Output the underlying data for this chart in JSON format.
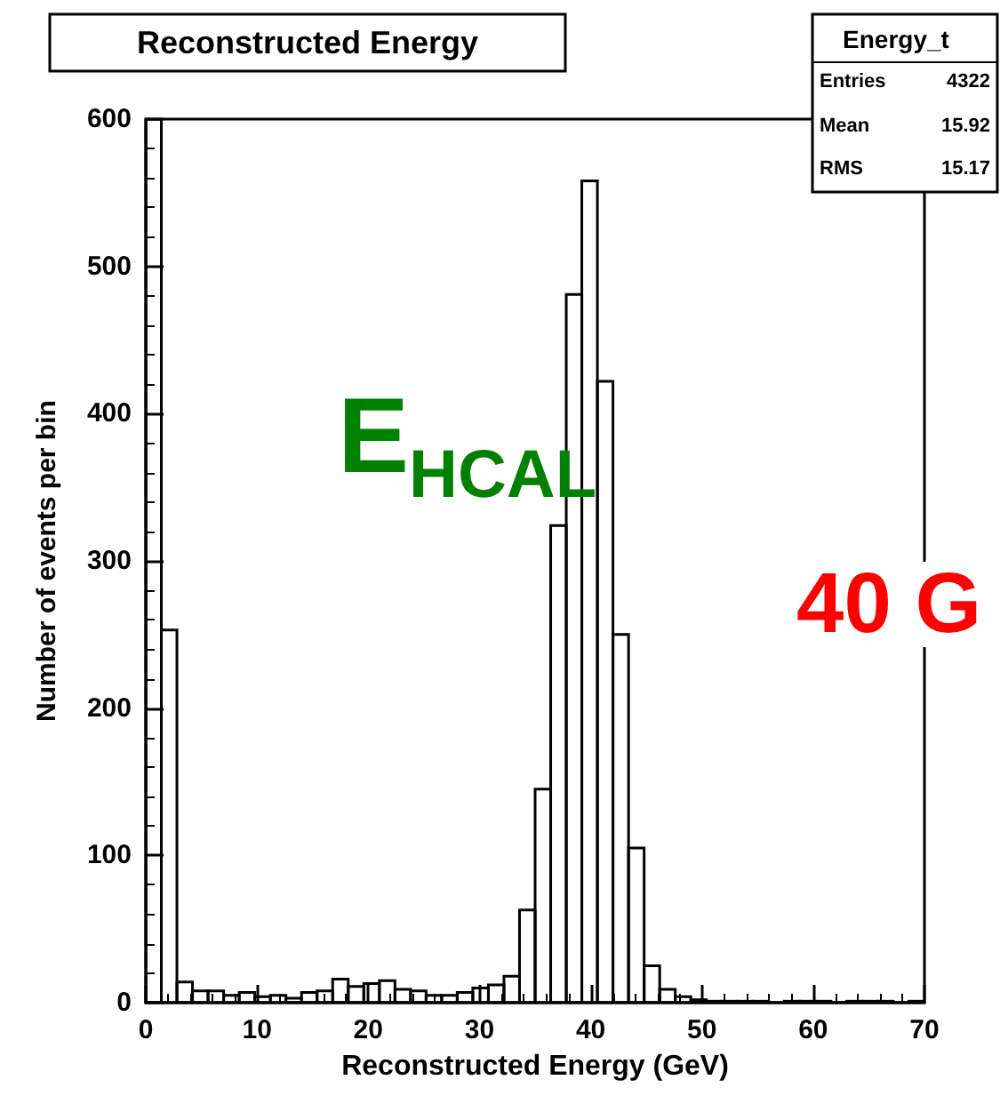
{
  "chart_data": {
    "type": "histogram",
    "title": "Reconstructed Energy",
    "xlabel": "Reconstructed Energy (GeV)",
    "ylabel": "Number of events per bin",
    "bins": [
      0,
      1.4,
      2.8,
      4.2,
      5.6,
      7,
      8.4,
      9.8,
      11.2,
      12.6,
      14,
      15.4,
      16.8,
      18.2,
      19.6,
      21,
      22.4,
      23.8,
      25.2,
      26.6,
      28,
      29.4,
      30.8,
      32.2,
      33.6,
      35,
      36.4,
      37.8,
      39.2,
      40.6,
      42,
      43.4,
      44.8,
      46.2,
      47.6,
      49,
      50.4,
      51.8,
      53.2,
      54.6,
      56,
      57.4,
      58.8,
      60.2,
      61.6,
      63,
      64.4,
      65.8,
      67.2,
      68.6,
      70
    ],
    "values": [
      600,
      253,
      14,
      8,
      8,
      5,
      7,
      4,
      5,
      3,
      7,
      8,
      16,
      11,
      13,
      15,
      9,
      8,
      5,
      5,
      7,
      10,
      12,
      18,
      63,
      145,
      324,
      481,
      558,
      422,
      250,
      105,
      25,
      9,
      4,
      2,
      1,
      1,
      1,
      1,
      0,
      1,
      1,
      1,
      0,
      1,
      1,
      1,
      0,
      1
    ],
    "color": "#000000",
    "xlim": [
      0,
      70
    ],
    "xticks": [
      0,
      10,
      20,
      30,
      40,
      50,
      60,
      70
    ],
    "ylim": [
      0,
      600
    ],
    "yticks": [
      0,
      100,
      200,
      300,
      400,
      500,
      600
    ],
    "grid": false,
    "annotations": [
      "Energy_t",
      "Entries   4322",
      "Mean   15.92",
      "RMS   15.17",
      "E$_{HCAL}$",
      "40 G"
    ]
  }
}
